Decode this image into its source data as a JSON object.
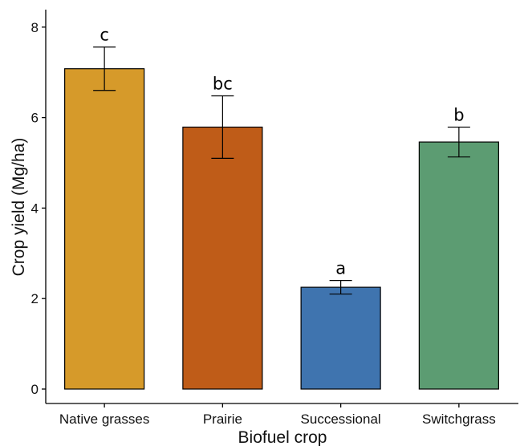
{
  "chart_data": {
    "type": "bar",
    "title": "",
    "xlabel": "Biofuel crop",
    "ylabel": "Crop yield (Mg/ha)",
    "ylim": [
      0,
      8.4
    ],
    "yticks": [
      0,
      2,
      4,
      6,
      8
    ],
    "grid": false,
    "legend": "none",
    "categories": [
      "Native grasses",
      "Prairie",
      "Successional",
      "Switchgrass"
    ],
    "values": [
      7.08,
      5.79,
      2.25,
      5.46
    ],
    "error_low": [
      6.6,
      5.1,
      2.1,
      5.13
    ],
    "error_high": [
      7.56,
      6.48,
      2.4,
      5.79
    ],
    "significance_labels": [
      "c",
      "bc",
      "a",
      "b"
    ],
    "colors": [
      "#D69A2A",
      "#BF5C18",
      "#3F74AF",
      "#5C9C72"
    ]
  }
}
